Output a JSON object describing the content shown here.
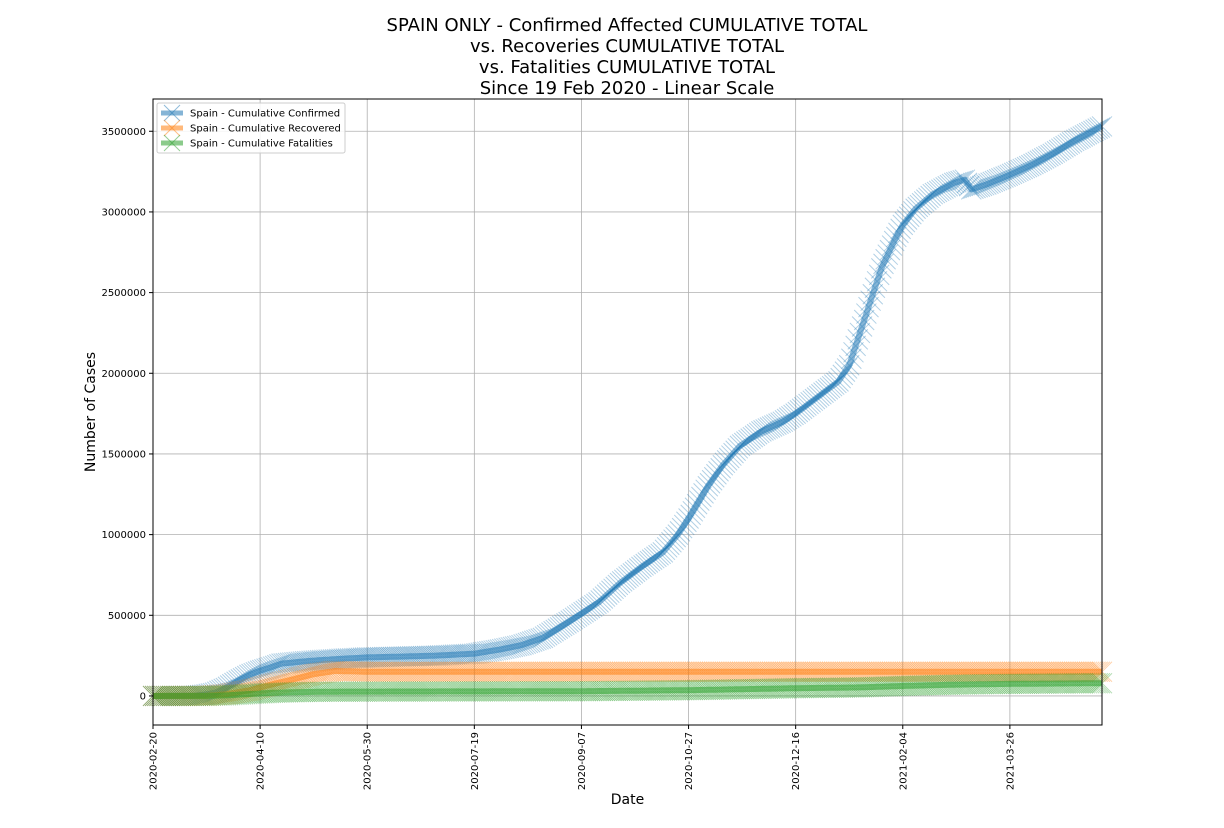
{
  "chart_data": {
    "type": "line",
    "title_lines": [
      "SPAIN ONLY - Confirmed Affected CUMULATIVE TOTAL",
      "vs. Recoveries CUMULATIVE TOTAL",
      "vs. Fatalities CUMULATIVE TOTAL",
      "Since 19 Feb 2020 - Linear Scale"
    ],
    "xlabel": "Date",
    "ylabel": "Number of Cases",
    "x_axis": {
      "type": "date",
      "min": "2020-02-20",
      "max": "2021-05-08",
      "ticks": [
        "2020-02-20",
        "2020-04-10",
        "2020-05-30",
        "2020-07-19",
        "2020-09-07",
        "2020-10-27",
        "2020-12-16",
        "2021-02-04",
        "2021-03-26"
      ]
    },
    "y_axis": {
      "min": -180000,
      "max": 3700000,
      "ticks": [
        0,
        500000,
        1000000,
        1500000,
        2000000,
        2500000,
        3000000,
        3500000
      ]
    },
    "grid": true,
    "legend": {
      "position": "top-left"
    },
    "series": [
      {
        "name": "Spain - Cumulative Confirmed",
        "color": "#1f77b4",
        "marker": "x",
        "points": [
          [
            "2020-02-20",
            2
          ],
          [
            "2020-03-01",
            84
          ],
          [
            "2020-03-10",
            1695
          ],
          [
            "2020-03-15",
            7798
          ],
          [
            "2020-03-20",
            20410
          ],
          [
            "2020-03-25",
            49515
          ],
          [
            "2020-03-31",
            95923
          ],
          [
            "2020-04-05",
            130759
          ],
          [
            "2020-04-10",
            157022
          ],
          [
            "2020-04-15",
            177633
          ],
          [
            "2020-04-20",
            200210
          ],
          [
            "2020-04-25",
            207000
          ],
          [
            "2020-05-01",
            215000
          ],
          [
            "2020-05-10",
            224000
          ],
          [
            "2020-05-20",
            232000
          ],
          [
            "2020-05-30",
            239000
          ],
          [
            "2020-06-15",
            244000
          ],
          [
            "2020-07-01",
            250000
          ],
          [
            "2020-07-19",
            262000
          ],
          [
            "2020-07-31",
            288000
          ],
          [
            "2020-08-10",
            315000
          ],
          [
            "2020-08-20",
            360000
          ],
          [
            "2020-08-31",
            450000
          ],
          [
            "2020-09-07",
            510000
          ],
          [
            "2020-09-15",
            580000
          ],
          [
            "2020-09-25",
            700000
          ],
          [
            "2020-10-05",
            800000
          ],
          [
            "2020-10-15",
            890000
          ],
          [
            "2020-10-22",
            1000000
          ],
          [
            "2020-10-27",
            1100000
          ],
          [
            "2020-11-05",
            1300000
          ],
          [
            "2020-11-12",
            1430000
          ],
          [
            "2020-11-20",
            1550000
          ],
          [
            "2020-11-30",
            1640000
          ],
          [
            "2020-12-10",
            1700000
          ],
          [
            "2020-12-16",
            1750000
          ],
          [
            "2020-12-25",
            1840000
          ],
          [
            "2021-01-05",
            1950000
          ],
          [
            "2021-01-10",
            2050000
          ],
          [
            "2021-01-15",
            2250000
          ],
          [
            "2021-01-20",
            2450000
          ],
          [
            "2021-01-25",
            2650000
          ],
          [
            "2021-01-31",
            2820000
          ],
          [
            "2021-02-04",
            2920000
          ],
          [
            "2021-02-10",
            3020000
          ],
          [
            "2021-02-18",
            3110000
          ],
          [
            "2021-02-28",
            3180000
          ],
          [
            "2021-03-05",
            3200000
          ],
          [
            "2021-03-08",
            3140000
          ],
          [
            "2021-03-15",
            3170000
          ],
          [
            "2021-03-26",
            3230000
          ],
          [
            "2021-04-05",
            3290000
          ],
          [
            "2021-04-15",
            3360000
          ],
          [
            "2021-04-25",
            3440000
          ],
          [
            "2021-05-08",
            3530000
          ]
        ]
      },
      {
        "name": "Spain - Cumulative Recovered",
        "color": "#ff7f0e",
        "marker": "x",
        "points": [
          [
            "2020-02-20",
            0
          ],
          [
            "2020-03-15",
            500
          ],
          [
            "2020-03-25",
            10000
          ],
          [
            "2020-04-05",
            35000
          ],
          [
            "2020-04-15",
            70000
          ],
          [
            "2020-04-25",
            102000
          ],
          [
            "2020-05-05",
            135000
          ],
          [
            "2020-05-15",
            155000
          ],
          [
            "2020-05-30",
            150000
          ],
          [
            "2020-06-15",
            150000
          ],
          [
            "2021-05-08",
            150000
          ]
        ]
      },
      {
        "name": "Spain - Cumulative Fatalities",
        "color": "#2ca02c",
        "marker": "x",
        "points": [
          [
            "2020-02-20",
            0
          ],
          [
            "2020-03-15",
            300
          ],
          [
            "2020-03-25",
            3500
          ],
          [
            "2020-04-05",
            12000
          ],
          [
            "2020-04-15",
            19000
          ],
          [
            "2020-04-25",
            23000
          ],
          [
            "2020-05-10",
            26500
          ],
          [
            "2020-05-30",
            27100
          ],
          [
            "2020-07-19",
            28400
          ],
          [
            "2020-09-07",
            29500
          ],
          [
            "2020-10-27",
            35800
          ],
          [
            "2020-12-16",
            48000
          ],
          [
            "2021-01-15",
            53000
          ],
          [
            "2021-02-04",
            62000
          ],
          [
            "2021-02-28",
            70000
          ],
          [
            "2021-03-26",
            75000
          ],
          [
            "2021-05-08",
            79000
          ]
        ]
      }
    ]
  }
}
